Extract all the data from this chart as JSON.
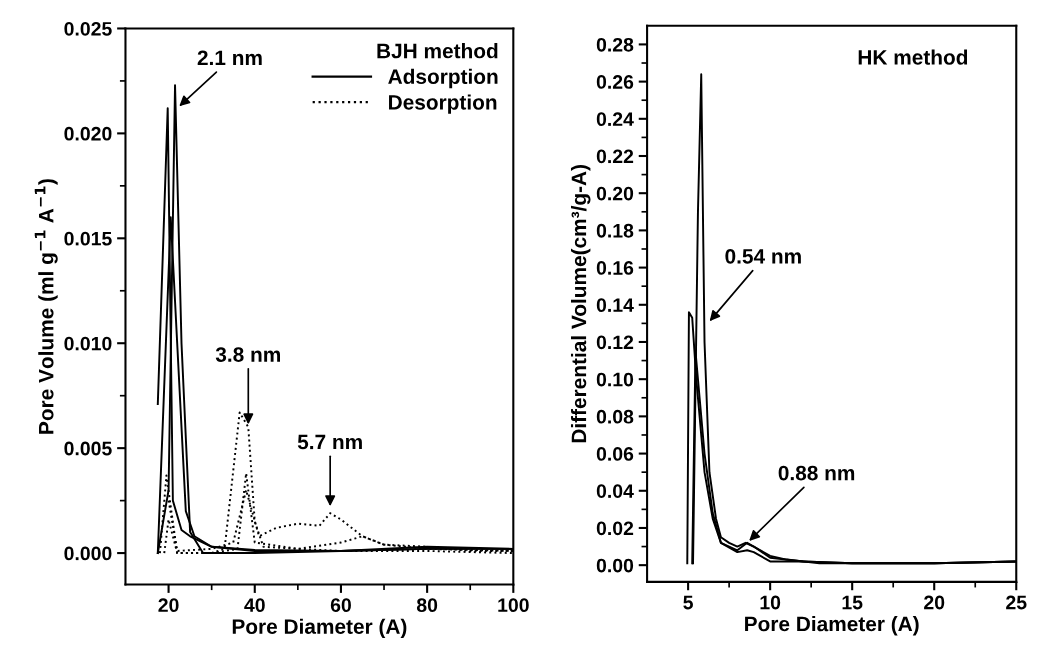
{
  "chart_data": [
    {
      "type": "line",
      "xlabel": "Pore Diameter (A)",
      "ylabel": "Pore Volume (ml g$^{−1}$ A$^{−1}$)",
      "legend_title": "BJH method",
      "legend": "top right",
      "grid": false,
      "xlim": [
        10,
        100
      ],
      "xticks": [
        20,
        40,
        60,
        80,
        100
      ],
      "ylim": [
        -0.0015,
        0.025
      ],
      "yticks": [
        {
          "value": 0,
          "label": "0.000"
        },
        {
          "value": 0.005,
          "label": "0.005"
        },
        {
          "value": 0.01,
          "label": "0.010"
        },
        {
          "value": 0.015,
          "label": "0.015"
        },
        {
          "value": 0.02,
          "label": "0.020"
        },
        {
          "value": 0.025,
          "label": "0.025"
        }
      ],
      "series": [
        {
          "name": "Adsorption",
          "color": "#000000",
          "line_style": "solid",
          "x": [
            17.5,
            20,
            21.5,
            23,
            25,
            28,
            40,
            60,
            80,
            100
          ],
          "values": [
            0,
            0.003,
            0.0223,
            0.01,
            0.001,
            0,
            0,
            0.0001,
            0.0002,
            0.0002
          ]
        },
        {
          "color": "#000000",
          "line_style": "solid",
          "x": [
            17.5,
            19.8,
            21,
            23,
            25,
            30,
            40,
            60,
            80,
            100
          ],
          "values": [
            0.0071,
            0.0212,
            0.0025,
            0.0011,
            0.0008,
            0.0003,
            0.00015,
            0.0001,
            0.0003,
            0.0002
          ]
        },
        {
          "color": "#000000",
          "line_style": "solid",
          "x": [
            17.5,
            20.5,
            22,
            24,
            26,
            30,
            40,
            60,
            80,
            100
          ],
          "values": [
            0,
            0.016,
            0.01,
            0.002,
            0.0008,
            0.0003,
            0.0001,
            0.0001,
            0.0002,
            0.0002
          ]
        },
        {
          "name": "Desorption",
          "color": "#000000",
          "line_style": "dotted",
          "x": [
            18,
            19.5,
            22,
            30,
            33,
            36.5,
            38.5,
            40,
            42,
            50,
            60,
            80,
            100
          ],
          "values": [
            0,
            0.0037,
            0,
            0,
            0.0002,
            0.0067,
            0.006,
            0.0015,
            0.0003,
            0.0002,
            0.0001,
            0.0001,
            0
          ]
        },
        {
          "color": "#000000",
          "line_style": "dotted",
          "x": [
            20,
            22,
            30,
            35,
            38,
            41,
            45,
            50,
            55,
            57.5,
            60,
            65,
            70,
            80,
            90,
            100
          ],
          "values": [
            0.0025,
            0.0001,
            0.0002,
            0.0005,
            0.003,
            0.0008,
            0.0012,
            0.0014,
            0.0013,
            0.0019,
            0.0016,
            0.0008,
            0.0004,
            0.0003,
            0.0001,
            0.0001
          ]
        },
        {
          "color": "#000000",
          "line_style": "dotted",
          "x": [
            19,
            20,
            22,
            30,
            36,
            38,
            40,
            50,
            60,
            65,
            70,
            80,
            100
          ],
          "values": [
            0,
            0.0016,
            0,
            0,
            0.0002,
            0.0038,
            0.0005,
            0.0002,
            0.0005,
            0.0008,
            0.0004,
            0.0002,
            0.0001
          ]
        }
      ],
      "annotations": [
        {
          "text": "2.1 nm",
          "x": 22,
          "y": 0.0212
        },
        {
          "text": "3.8 nm",
          "x": 38.5,
          "y": 0.006
        },
        {
          "text": "5.7 nm",
          "x": 57.5,
          "y": 0.0021
        }
      ]
    },
    {
      "type": "line",
      "xlabel": "Pore Diameter (A)",
      "ylabel": "Differential Volume(cm³/g-A)",
      "grid": false,
      "xlim": [
        2.5,
        25
      ],
      "xticks": [
        5,
        10,
        15,
        20,
        25
      ],
      "ylim": [
        -0.009,
        0.29
      ],
      "yticks": [
        {
          "value": 0,
          "label": "0.00"
        },
        {
          "value": 0.02,
          "label": "0.02"
        },
        {
          "value": 0.04,
          "label": "0.04"
        },
        {
          "value": 0.06,
          "label": "0.06"
        },
        {
          "value": 0.08,
          "label": "0.08"
        },
        {
          "value": 0.1,
          "label": "0.10"
        },
        {
          "value": 0.12,
          "label": "0.12"
        },
        {
          "value": 0.14,
          "label": "0.14"
        },
        {
          "value": 0.16,
          "label": "0.16"
        },
        {
          "value": 0.18,
          "label": "0.18"
        },
        {
          "value": 0.2,
          "label": "0.20"
        },
        {
          "value": 0.22,
          "label": "0.22"
        },
        {
          "value": 0.24,
          "label": "0.24"
        },
        {
          "value": 0.26,
          "label": "0.26"
        },
        {
          "value": 0.28,
          "label": "0.28"
        }
      ],
      "series": [
        {
          "color": "#000000",
          "line_style": "solid",
          "x": [
            5.3,
            5.6,
            5.8,
            6.0,
            6.3,
            6.7,
            7,
            7.5,
            8,
            8.5,
            9,
            10,
            11,
            13,
            15,
            20,
            25
          ],
          "values": [
            0.001,
            0.19,
            0.264,
            0.12,
            0.05,
            0.025,
            0.015,
            0.012,
            0.01,
            0.012,
            0.01,
            0.005,
            0.003,
            0.001,
            0.001,
            0.001,
            0.002
          ]
        },
        {
          "color": "#000000",
          "line_style": "solid",
          "x": [
            4.95,
            5.05,
            5.25,
            5.5,
            6,
            6.5,
            7,
            8,
            8.6,
            9,
            10,
            12,
            15,
            20,
            25
          ],
          "values": [
            0.001,
            0.136,
            0.133,
            0.1,
            0.05,
            0.025,
            0.012,
            0.008,
            0.012,
            0.01,
            0.004,
            0.002,
            0.001,
            0.001,
            0.002
          ]
        },
        {
          "color": "#000000",
          "line_style": "solid",
          "x": [
            5.25,
            5.45,
            5.7,
            6,
            6.5,
            7,
            8,
            8.6,
            9,
            10,
            12,
            15,
            20,
            25
          ],
          "values": [
            0.001,
            0.115,
            0.09,
            0.06,
            0.028,
            0.012,
            0.007,
            0.008,
            0.007,
            0.002,
            0.002,
            0.001,
            0.001,
            0.002
          ]
        }
      ],
      "annotations": [
        "HK method",
        {
          "text": "0.54 nm",
          "x": 6.2,
          "y": 0.13
        },
        {
          "text": "0.88 nm",
          "x": 8.6,
          "y": 0.012
        }
      ]
    }
  ]
}
